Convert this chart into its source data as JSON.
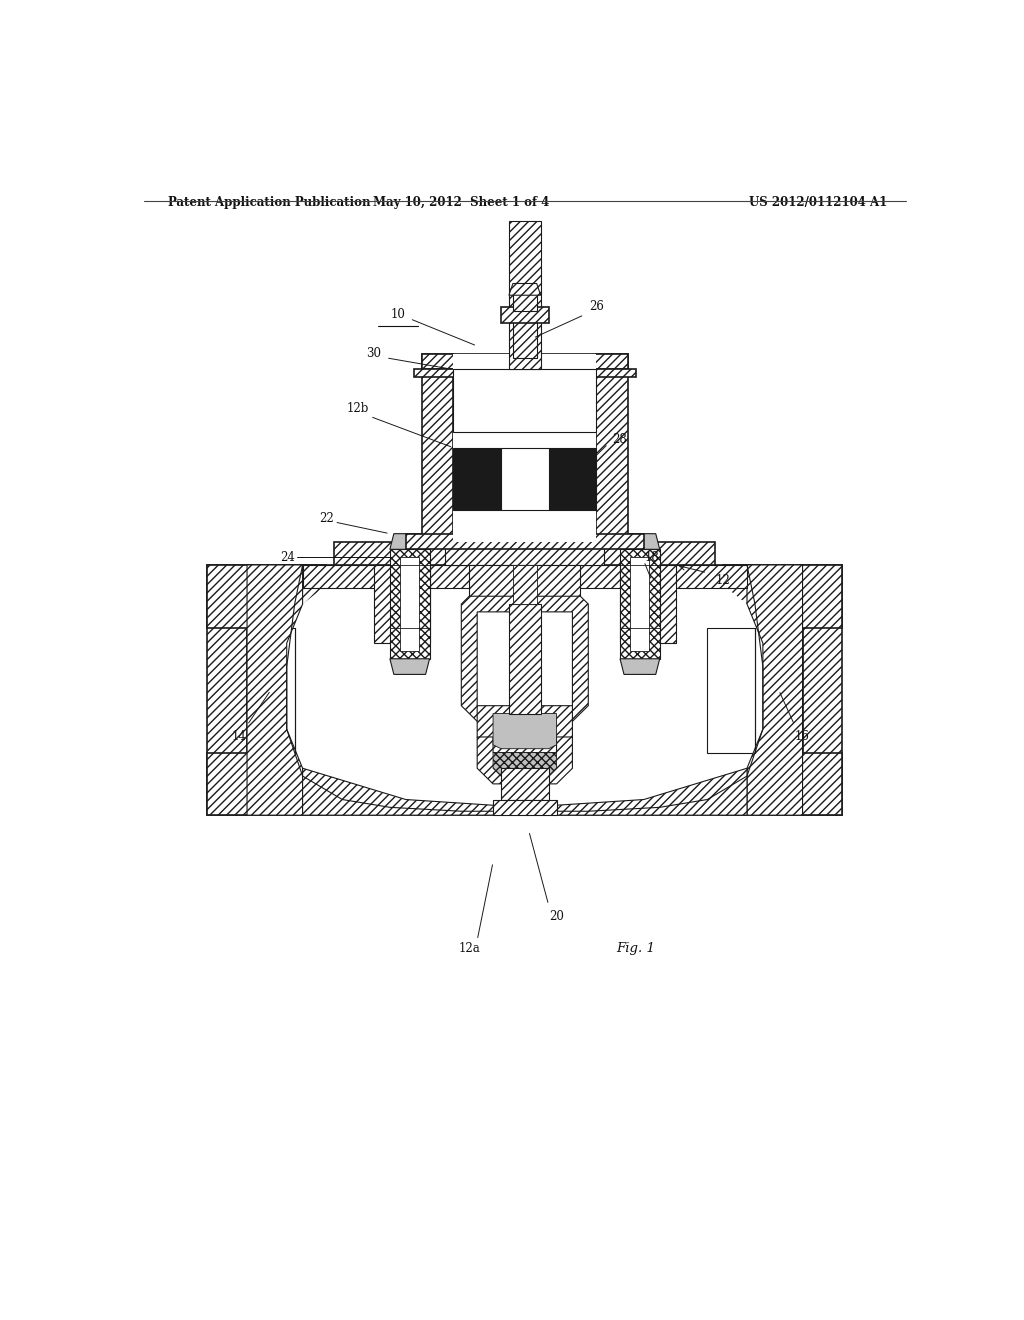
{
  "background_color": "#ffffff",
  "header_left": "Patent Application Publication",
  "header_center": "May 10, 2012  Sheet 1 of 4",
  "header_right": "US 2012/0112104 A1",
  "figure_label": "Fig. 1",
  "line_color": "#1a1a1a",
  "dark_fill": "#1a1a1a",
  "gray_fill": "#c0c0c0",
  "light_gray": "#e8e8e8",
  "white_fill": "#ffffff"
}
